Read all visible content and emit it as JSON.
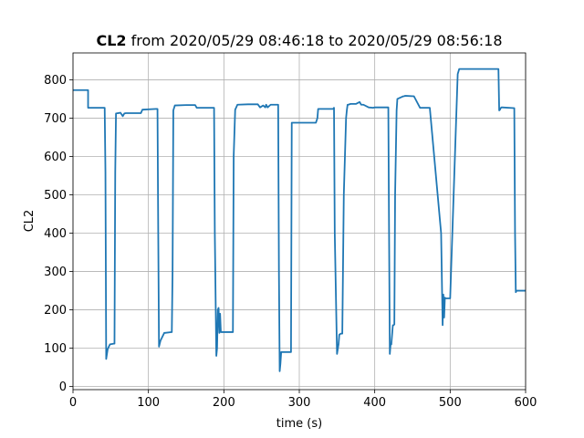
{
  "chart_data": {
    "type": "line",
    "title": {
      "bold_part": "CL2",
      "rest": " from 2020/05/29 08:46:18 to 2020/05/29 08:56:18"
    },
    "xlabel": "time (s)",
    "ylabel": "CL2",
    "xlim": [
      0,
      600
    ],
    "ylim": [
      -8,
      870
    ],
    "xticks": [
      0,
      100,
      200,
      300,
      400,
      500,
      600
    ],
    "xtick_labels": [
      "0",
      "100",
      "200",
      "300",
      "400",
      "500",
      "600"
    ],
    "yticks": [
      0,
      100,
      200,
      300,
      400,
      500,
      600,
      700,
      800
    ],
    "ytick_labels": [
      "0",
      "100",
      "200",
      "300",
      "400",
      "500",
      "600",
      "700",
      "800"
    ],
    "grid": true,
    "color": "#1f77b4",
    "series": [
      {
        "x": [
          0,
          20,
          20,
          42,
          43,
          44,
          46,
          49,
          54,
          55,
          56,
          57,
          63,
          66,
          68,
          70,
          90,
          92,
          110,
          112,
          113,
          114,
          116,
          121,
          122,
          130,
          131,
          132,
          133,
          135,
          150,
          162,
          164,
          187,
          188,
          190,
          191,
          192,
          193,
          194,
          195,
          196,
          197,
          212,
          213,
          215,
          218,
          232,
          245,
          248,
          252,
          255,
          256,
          258,
          262,
          272,
          273,
          274,
          275,
          276,
          277,
          288,
          289,
          290,
          312,
          322,
          324,
          325,
          345,
          346,
          347,
          350,
          352,
          353,
          355,
          357,
          359,
          362,
          363,
          364,
          365,
          368,
          375,
          380,
          382,
          385,
          392,
          398,
          400,
          402,
          418,
          419,
          420,
          421,
          422,
          424,
          425,
          426,
          427,
          429,
          430,
          438,
          439,
          440,
          442,
          452,
          460,
          470,
          472,
          473,
          488,
          490,
          491,
          492,
          493,
          494,
          496,
          500,
          508,
          510,
          512,
          514,
          545,
          564,
          565,
          566,
          567,
          568,
          569,
          585,
          586,
          587,
          588,
          590,
          600
        ],
        "y": [
          773,
          773,
          727,
          727,
          560,
          72,
          98,
          110,
          112,
          112,
          560,
          712,
          714,
          705,
          712,
          713,
          713,
          722,
          724,
          724,
          400,
          104,
          120,
          140,
          140,
          142,
          142,
          300,
          720,
          733,
          734,
          734,
          727,
          727,
          400,
          80,
          100,
          200,
          205,
          140,
          190,
          142,
          142,
          142,
          600,
          722,
          735,
          736,
          736,
          728,
          733,
          728,
          735,
          728,
          735,
          735,
          300,
          40,
          60,
          90,
          90,
          90,
          90,
          688,
          688,
          688,
          700,
          724,
          724,
          727,
          400,
          85,
          110,
          135,
          138,
          138,
          500,
          700,
          720,
          735,
          735,
          737,
          737,
          742,
          735,
          735,
          728,
          727,
          728,
          728,
          728,
          400,
          85,
          110,
          110,
          160,
          160,
          162,
          500,
          720,
          750,
          757,
          757,
          758,
          758,
          757,
          727,
          727,
          727,
          727,
          400,
          160,
          240,
          180,
          232,
          230,
          230,
          230,
          700,
          815,
          828,
          828,
          828,
          828,
          720,
          722,
          726,
          728,
          728,
          726,
          400,
          246,
          250,
          250,
          250
        ]
      }
    ]
  }
}
